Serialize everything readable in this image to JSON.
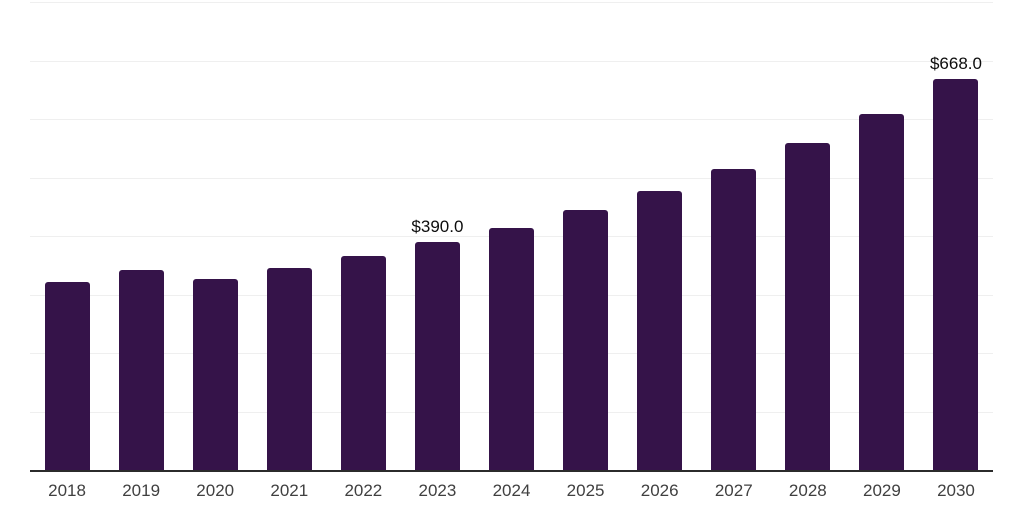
{
  "chart_data": {
    "type": "bar",
    "title": "",
    "xlabel": "",
    "ylabel": "",
    "categories": [
      "2018",
      "2019",
      "2020",
      "2021",
      "2022",
      "2023",
      "2024",
      "2025",
      "2026",
      "2027",
      "2028",
      "2029",
      "2030"
    ],
    "values": [
      322.0,
      342.0,
      326.0,
      346.0,
      366.0,
      390.0,
      414.0,
      445.0,
      477.0,
      515.0,
      559.0,
      609.0,
      668.0
    ],
    "ylim": [
      0,
      800
    ],
    "gridline_step": 100,
    "grid": true,
    "legend": false,
    "data_labels": [
      {
        "category": "2023",
        "text": "$390.0"
      },
      {
        "category": "2030",
        "text": "$668.0"
      }
    ],
    "colors": {
      "bar": "#351349",
      "axis_line": "#2b2b2b",
      "gridline": "#efefef",
      "tick_label": "#404040",
      "data_label": "#0d0d0d",
      "background": "#ffffff"
    }
  }
}
